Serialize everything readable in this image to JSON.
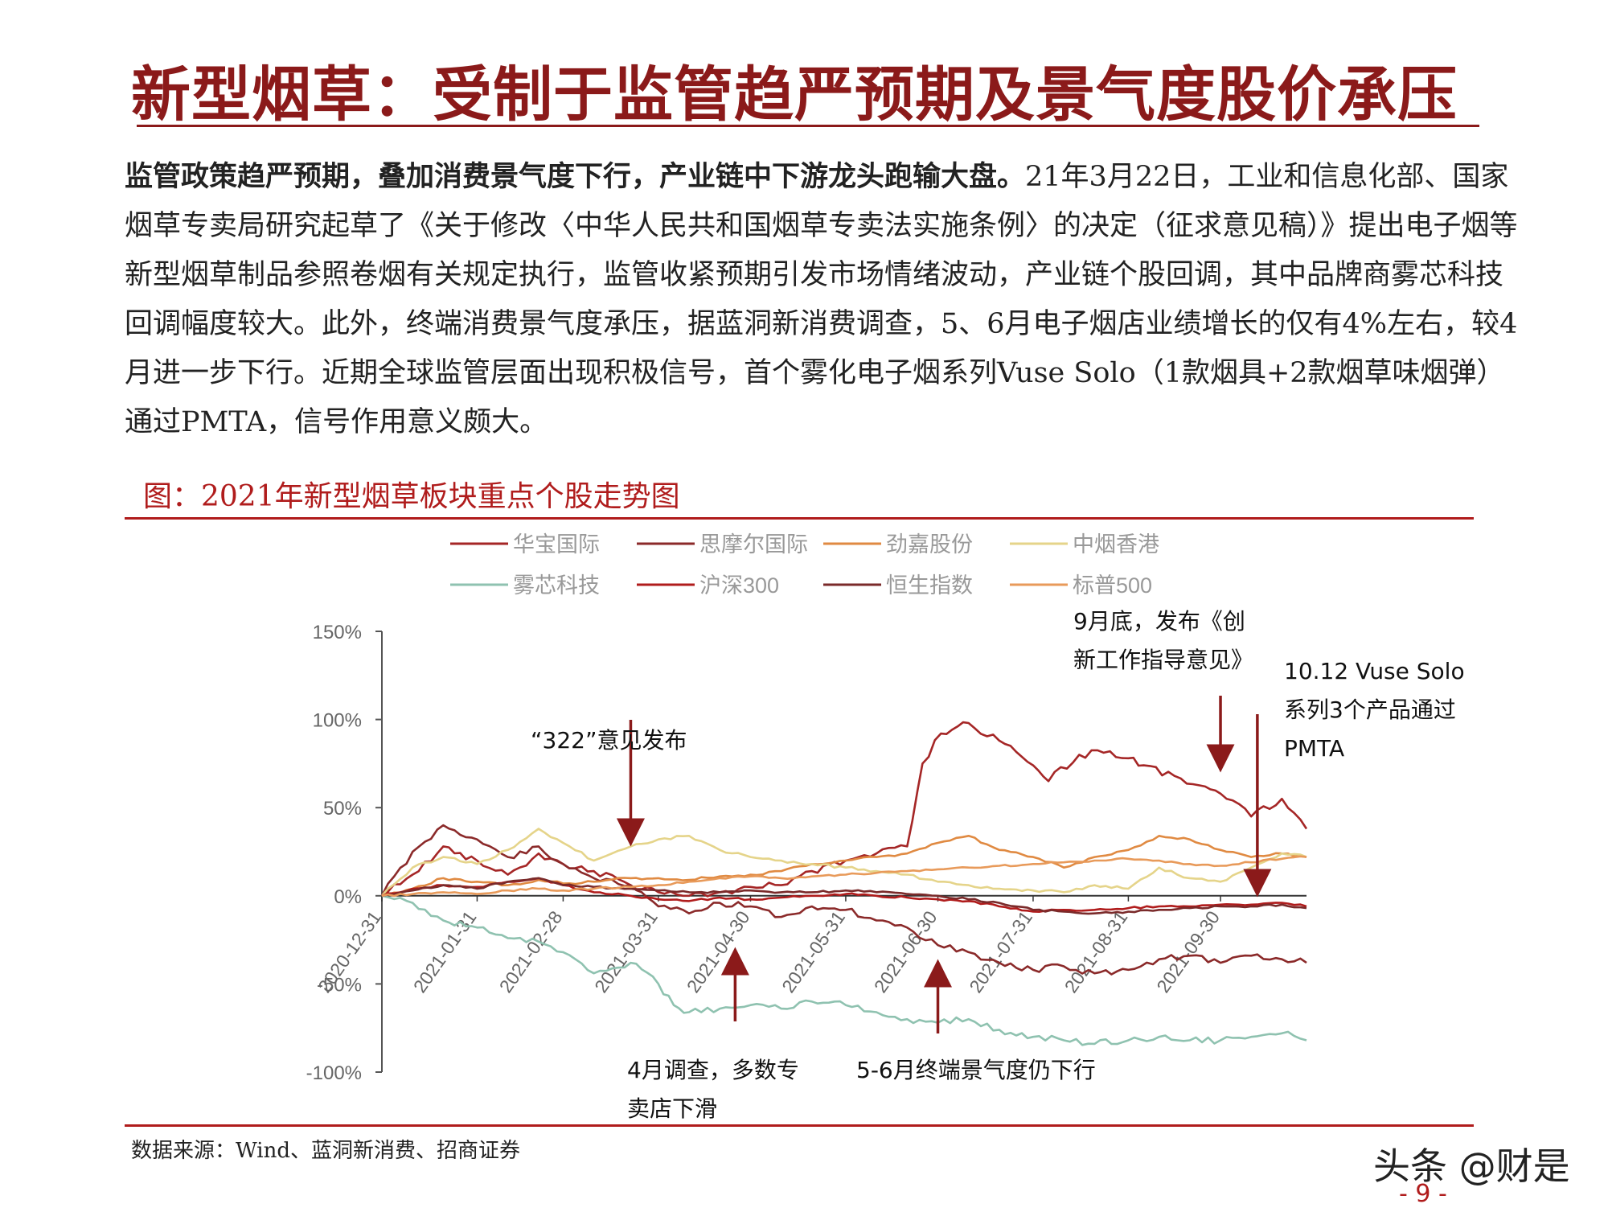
{
  "page": {
    "title": "新型烟草：受制于监管趋严预期及景气度股价承压",
    "paragraph_bold": "监管政策趋严预期，叠加消费景气度下行，产业链中下游龙头跑输大盘。",
    "paragraph_text": "21年3月22日，工业和信息化部、国家烟草专卖局研究起草了《关于修改〈中华人民共和国烟草专卖法实施条例〉的决定（征求意见稿）》提出电子烟等新型烟草制品参照卷烟有关规定执行，监管收紧预期引发市场情绪波动，产业链个股回调，其中品牌商雾芯科技回调幅度较大。此外，终端消费景气度承压，据蓝洞新消费调查，5、6月电子烟店业绩增长的仅有4%左右，较4月进一步下行。近期全球监管层面出现积极信号，首个雾化电子烟系列Vuse Solo（1款烟具+2款烟草味烟弹）通过PMTA，信号作用意义颇大。",
    "figure_caption": "图：2021年新型烟草板块重点个股走势图",
    "source": "数据来源：Wind、蓝洞新消费、招商证券",
    "watermark": "头条 @财是",
    "page_number": "- 9 -"
  },
  "chart_data": {
    "type": "line",
    "y_ticks": [
      "150%",
      "100%",
      "50%",
      "0%",
      "-50%",
      "-100%"
    ],
    "y_tick_values": [
      150,
      100,
      50,
      0,
      -50,
      -100
    ],
    "ylim": [
      -100,
      150
    ],
    "x_tick_labels": [
      "2020-12-31",
      "2021-01-31",
      "2021-02-28",
      "2021-03-31",
      "2021-04-30",
      "2021-05-31",
      "2021-06-30",
      "2021-07-31",
      "2021-08-31",
      "2021-09-30"
    ],
    "xlim": [
      "2020-12-31",
      "2021-10-28"
    ],
    "series": [
      {
        "name": "华宝国际",
        "color": "#a52626",
        "values": [
          [
            "2020-12-31",
            0
          ],
          [
            "2021-01-10",
            12
          ],
          [
            "2021-01-20",
            28
          ],
          [
            "2021-01-31",
            20
          ],
          [
            "2021-02-10",
            12
          ],
          [
            "2021-02-20",
            24
          ],
          [
            "2021-02-28",
            18
          ],
          [
            "2021-03-10",
            14
          ],
          [
            "2021-03-22",
            6
          ],
          [
            "2021-03-31",
            2
          ],
          [
            "2021-04-10",
            0
          ],
          [
            "2021-04-20",
            2
          ],
          [
            "2021-04-30",
            5
          ],
          [
            "2021-05-10",
            6
          ],
          [
            "2021-05-20",
            14
          ],
          [
            "2021-05-31",
            20
          ],
          [
            "2021-06-10",
            24
          ],
          [
            "2021-06-20",
            28
          ],
          [
            "2021-06-25",
            75
          ],
          [
            "2021-07-01",
            92
          ],
          [
            "2021-07-10",
            98
          ],
          [
            "2021-07-20",
            88
          ],
          [
            "2021-07-31",
            74
          ],
          [
            "2021-08-05",
            65
          ],
          [
            "2021-08-15",
            80
          ],
          [
            "2021-08-25",
            82
          ],
          [
            "2021-08-31",
            78
          ],
          [
            "2021-09-05",
            74
          ],
          [
            "2021-09-15",
            68
          ],
          [
            "2021-09-25",
            62
          ],
          [
            "2021-09-30",
            58
          ],
          [
            "2021-10-10",
            45
          ],
          [
            "2021-10-20",
            55
          ],
          [
            "2021-10-28",
            38
          ]
        ]
      },
      {
        "name": "思摩尔国际",
        "color": "#8b2a2a",
        "values": [
          [
            "2020-12-31",
            0
          ],
          [
            "2021-01-10",
            25
          ],
          [
            "2021-01-20",
            40
          ],
          [
            "2021-01-31",
            32
          ],
          [
            "2021-02-10",
            22
          ],
          [
            "2021-02-20",
            28
          ],
          [
            "2021-02-28",
            18
          ],
          [
            "2021-03-10",
            10
          ],
          [
            "2021-03-22",
            6
          ],
          [
            "2021-03-31",
            -6
          ],
          [
            "2021-04-10",
            -10
          ],
          [
            "2021-04-20",
            -4
          ],
          [
            "2021-04-30",
            -6
          ],
          [
            "2021-05-10",
            -12
          ],
          [
            "2021-05-20",
            -6
          ],
          [
            "2021-05-31",
            -8
          ],
          [
            "2021-06-10",
            -14
          ],
          [
            "2021-06-20",
            -18
          ],
          [
            "2021-06-30",
            -28
          ],
          [
            "2021-07-10",
            -32
          ],
          [
            "2021-07-20",
            -38
          ],
          [
            "2021-07-31",
            -42
          ],
          [
            "2021-08-10",
            -40
          ],
          [
            "2021-08-20",
            -44
          ],
          [
            "2021-08-31",
            -42
          ],
          [
            "2021-09-10",
            -36
          ],
          [
            "2021-09-20",
            -34
          ],
          [
            "2021-09-30",
            -38
          ],
          [
            "2021-10-10",
            -34
          ],
          [
            "2021-10-20",
            -36
          ],
          [
            "2021-10-28",
            -38
          ]
        ]
      },
      {
        "name": "劲嘉股份",
        "color": "#e08a42",
        "values": [
          [
            "2020-12-31",
            0
          ],
          [
            "2021-01-10",
            4
          ],
          [
            "2021-01-20",
            10
          ],
          [
            "2021-01-31",
            8
          ],
          [
            "2021-02-10",
            6
          ],
          [
            "2021-02-20",
            9
          ],
          [
            "2021-02-28",
            7
          ],
          [
            "2021-03-10",
            8
          ],
          [
            "2021-03-22",
            10
          ],
          [
            "2021-03-31",
            10
          ],
          [
            "2021-04-10",
            9
          ],
          [
            "2021-04-20",
            11
          ],
          [
            "2021-04-30",
            12
          ],
          [
            "2021-05-10",
            14
          ],
          [
            "2021-05-20",
            18
          ],
          [
            "2021-05-31",
            20
          ],
          [
            "2021-06-10",
            22
          ],
          [
            "2021-06-20",
            24
          ],
          [
            "2021-06-30",
            30
          ],
          [
            "2021-07-10",
            34
          ],
          [
            "2021-07-20",
            26
          ],
          [
            "2021-07-31",
            22
          ],
          [
            "2021-08-10",
            16
          ],
          [
            "2021-08-20",
            22
          ],
          [
            "2021-08-31",
            26
          ],
          [
            "2021-09-10",
            34
          ],
          [
            "2021-09-20",
            32
          ],
          [
            "2021-09-30",
            26
          ],
          [
            "2021-10-10",
            22
          ],
          [
            "2021-10-20",
            24
          ],
          [
            "2021-10-28",
            22
          ]
        ]
      },
      {
        "name": "中烟香港",
        "color": "#e5d48a",
        "values": [
          [
            "2020-12-31",
            0
          ],
          [
            "2021-01-10",
            16
          ],
          [
            "2021-01-20",
            22
          ],
          [
            "2021-01-31",
            18
          ],
          [
            "2021-02-10",
            26
          ],
          [
            "2021-02-20",
            38
          ],
          [
            "2021-02-28",
            30
          ],
          [
            "2021-03-10",
            20
          ],
          [
            "2021-03-22",
            28
          ],
          [
            "2021-03-31",
            32
          ],
          [
            "2021-04-10",
            34
          ],
          [
            "2021-04-20",
            26
          ],
          [
            "2021-04-30",
            22
          ],
          [
            "2021-05-10",
            20
          ],
          [
            "2021-05-20",
            18
          ],
          [
            "2021-05-31",
            16
          ],
          [
            "2021-06-10",
            14
          ],
          [
            "2021-06-20",
            12
          ],
          [
            "2021-06-30",
            8
          ],
          [
            "2021-07-10",
            6
          ],
          [
            "2021-07-20",
            4
          ],
          [
            "2021-07-31",
            3
          ],
          [
            "2021-08-10",
            2
          ],
          [
            "2021-08-20",
            6
          ],
          [
            "2021-08-31",
            4
          ],
          [
            "2021-09-10",
            16
          ],
          [
            "2021-09-20",
            10
          ],
          [
            "2021-09-30",
            8
          ],
          [
            "2021-10-10",
            16
          ],
          [
            "2021-10-20",
            24
          ],
          [
            "2021-10-28",
            22
          ]
        ]
      },
      {
        "name": "雾芯科技",
        "color": "#8fc2b0",
        "values": [
          [
            "2020-12-31",
            0
          ],
          [
            "2021-01-10",
            -4
          ],
          [
            "2021-01-20",
            -14
          ],
          [
            "2021-01-31",
            -18
          ],
          [
            "2021-02-10",
            -24
          ],
          [
            "2021-02-20",
            -26
          ],
          [
            "2021-02-28",
            -32
          ],
          [
            "2021-03-10",
            -44
          ],
          [
            "2021-03-22",
            -38
          ],
          [
            "2021-03-31",
            -50
          ],
          [
            "2021-04-05",
            -62
          ],
          [
            "2021-04-10",
            -66
          ],
          [
            "2021-04-20",
            -64
          ],
          [
            "2021-04-30",
            -62
          ],
          [
            "2021-05-10",
            -64
          ],
          [
            "2021-05-20",
            -60
          ],
          [
            "2021-05-31",
            -62
          ],
          [
            "2021-06-10",
            -66
          ],
          [
            "2021-06-20",
            -70
          ],
          [
            "2021-06-30",
            -72
          ],
          [
            "2021-07-10",
            -70
          ],
          [
            "2021-07-20",
            -76
          ],
          [
            "2021-07-31",
            -80
          ],
          [
            "2021-08-10",
            -82
          ],
          [
            "2021-08-20",
            -84
          ],
          [
            "2021-08-31",
            -82
          ],
          [
            "2021-09-10",
            -80
          ],
          [
            "2021-09-20",
            -82
          ],
          [
            "2021-09-30",
            -82
          ],
          [
            "2021-10-10",
            -80
          ],
          [
            "2021-10-20",
            -78
          ],
          [
            "2021-10-28",
            -82
          ]
        ]
      },
      {
        "name": "沪深300",
        "color": "#b01c1c",
        "values": [
          [
            "2020-12-31",
            0
          ],
          [
            "2021-01-10",
            4
          ],
          [
            "2021-01-20",
            6
          ],
          [
            "2021-01-31",
            5
          ],
          [
            "2021-02-10",
            8
          ],
          [
            "2021-02-20",
            10
          ],
          [
            "2021-02-28",
            6
          ],
          [
            "2021-03-10",
            2
          ],
          [
            "2021-03-22",
            0
          ],
          [
            "2021-03-31",
            -2
          ],
          [
            "2021-04-10",
            -3
          ],
          [
            "2021-04-20",
            -1
          ],
          [
            "2021-04-30",
            -2
          ],
          [
            "2021-05-10",
            -1
          ],
          [
            "2021-05-20",
            0
          ],
          [
            "2021-05-31",
            1
          ],
          [
            "2021-06-10",
            0
          ],
          [
            "2021-06-20",
            -1
          ],
          [
            "2021-06-30",
            -2
          ],
          [
            "2021-07-10",
            -3
          ],
          [
            "2021-07-20",
            -6
          ],
          [
            "2021-07-31",
            -9
          ],
          [
            "2021-08-10",
            -8
          ],
          [
            "2021-08-20",
            -8
          ],
          [
            "2021-08-31",
            -7
          ],
          [
            "2021-09-10",
            -6
          ],
          [
            "2021-09-20",
            -6
          ],
          [
            "2021-09-30",
            -5
          ],
          [
            "2021-10-10",
            -5
          ],
          [
            "2021-10-20",
            -4
          ],
          [
            "2021-10-28",
            -6
          ]
        ]
      },
      {
        "name": "恒生指数",
        "color": "#7a2a2a",
        "values": [
          [
            "2020-12-31",
            0
          ],
          [
            "2021-01-10",
            3
          ],
          [
            "2021-01-20",
            6
          ],
          [
            "2021-01-31",
            4
          ],
          [
            "2021-02-10",
            8
          ],
          [
            "2021-02-20",
            10
          ],
          [
            "2021-02-28",
            6
          ],
          [
            "2021-03-10",
            5
          ],
          [
            "2021-03-22",
            4
          ],
          [
            "2021-03-31",
            3
          ],
          [
            "2021-04-10",
            2
          ],
          [
            "2021-04-20",
            2
          ],
          [
            "2021-04-30",
            3
          ],
          [
            "2021-05-10",
            2
          ],
          [
            "2021-05-20",
            2
          ],
          [
            "2021-05-31",
            3
          ],
          [
            "2021-06-10",
            2
          ],
          [
            "2021-06-20",
            1
          ],
          [
            "2021-06-30",
            0
          ],
          [
            "2021-07-10",
            -2
          ],
          [
            "2021-07-20",
            -4
          ],
          [
            "2021-07-31",
            -8
          ],
          [
            "2021-08-10",
            -9
          ],
          [
            "2021-08-20",
            -10
          ],
          [
            "2021-08-31",
            -9
          ],
          [
            "2021-09-10",
            -8
          ],
          [
            "2021-09-20",
            -7
          ],
          [
            "2021-09-30",
            -6
          ],
          [
            "2021-10-10",
            -6
          ],
          [
            "2021-10-20",
            -5
          ],
          [
            "2021-10-28",
            -7
          ]
        ]
      },
      {
        "name": "标普500",
        "color": "#e89a5a",
        "values": [
          [
            "2020-12-31",
            0
          ],
          [
            "2021-01-10",
            1
          ],
          [
            "2021-01-20",
            2
          ],
          [
            "2021-01-31",
            1
          ],
          [
            "2021-02-10",
            3
          ],
          [
            "2021-02-20",
            4
          ],
          [
            "2021-02-28",
            3
          ],
          [
            "2021-03-10",
            4
          ],
          [
            "2021-03-22",
            5
          ],
          [
            "2021-03-31",
            6
          ],
          [
            "2021-04-10",
            8
          ],
          [
            "2021-04-20",
            10
          ],
          [
            "2021-04-30",
            11
          ],
          [
            "2021-05-10",
            10
          ],
          [
            "2021-05-20",
            11
          ],
          [
            "2021-05-31",
            12
          ],
          [
            "2021-06-10",
            13
          ],
          [
            "2021-06-20",
            14
          ],
          [
            "2021-06-30",
            15
          ],
          [
            "2021-07-10",
            16
          ],
          [
            "2021-07-20",
            17
          ],
          [
            "2021-07-31",
            18
          ],
          [
            "2021-08-10",
            19
          ],
          [
            "2021-08-20",
            20
          ],
          [
            "2021-08-31",
            21
          ],
          [
            "2021-09-10",
            20
          ],
          [
            "2021-09-20",
            18
          ],
          [
            "2021-09-30",
            17
          ],
          [
            "2021-10-10",
            19
          ],
          [
            "2021-10-20",
            21
          ],
          [
            "2021-10-28",
            22
          ]
        ]
      }
    ],
    "annotations": [
      {
        "lines": [
          "“322”意见发布"
        ],
        "date": "2021-03-22",
        "arrow": "down"
      },
      {
        "lines": [
          "4月调查，多数专",
          "卖店下滑"
        ],
        "date": "2021-04-25",
        "arrow": "up"
      },
      {
        "lines": [
          "5-6月终端景气度仍下行"
        ],
        "date": "2021-06-30",
        "arrow": "up"
      },
      {
        "lines": [
          "9月底，发布《创",
          "新工作指导意见》"
        ],
        "date": "2021-09-30",
        "arrow": "down"
      },
      {
        "lines": [
          "10.12 Vuse Solo",
          "系列3个产品通过",
          "PMTA"
        ],
        "date": "2021-10-12",
        "arrow": "down"
      }
    ]
  }
}
